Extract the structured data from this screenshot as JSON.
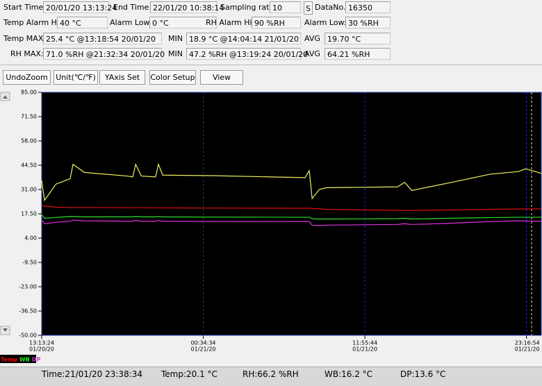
{
  "panel": {
    "start_time": {
      "label": "Start Time:",
      "value": "20/01/20 13:13:24"
    },
    "end_time": {
      "label": "End Time:",
      "value": "22/01/20 10:38:14"
    },
    "sampling_rate": {
      "label": "Sampling rate:",
      "value": "10",
      "button": "S"
    },
    "data_no": {
      "label": "DataNo.",
      "value": "16350"
    },
    "temp_alarm_hi": {
      "label": "Temp Alarm Hi:",
      "value": "40 °C"
    },
    "temp_alarm_low": {
      "label": "Alarm Low:",
      "value": "0 °C"
    },
    "rh_alarm_hi": {
      "label": "RH Alarm Hi:",
      "value": "90 %RH"
    },
    "rh_alarm_low": {
      "label": "Alarm Low:",
      "value": "30 %RH"
    },
    "temp_max": {
      "label": "Temp MAX:",
      "value": "25.4 °C @13:18:54 20/01/20"
    },
    "temp_min": {
      "label": "MIN",
      "value": "18.9 °C @14:04:14 21/01/20"
    },
    "temp_avg": {
      "label": "AVG",
      "value": "19.70 °C"
    },
    "rh_max": {
      "label": "RH MAX:",
      "value": "71.0 %RH @21:32:34 20/01/20"
    },
    "rh_min": {
      "label": "MIN",
      "value": "47.2 %RH @13:19:24 20/01/20"
    },
    "rh_avg": {
      "label": "AVG",
      "value": "64.21 %RH"
    }
  },
  "toolbar": [
    "UndoZoom",
    "Unit(℃/℉)",
    "YAxis Set",
    "Color Setup",
    "View"
  ],
  "chart_data": {
    "type": "line",
    "x": [
      0,
      0.2,
      1,
      2,
      2.2,
      3,
      6,
      6.4,
      6.6,
      7,
      8,
      8.2,
      8.5,
      12,
      18.5,
      18.8,
      19,
      19.5,
      20,
      25,
      25.5,
      26,
      28.5,
      31.5,
      33.5,
      34,
      35.1
    ],
    "series": [
      {
        "color": "#f0f060",
        "values": [
          36,
          25,
          34,
          37,
          45,
          40.5,
          38.5,
          38,
          45,
          38.5,
          38,
          45,
          39,
          38.7,
          37.6,
          41.5,
          26,
          31,
          32,
          32.5,
          35,
          30.5,
          34.5,
          39.5,
          41,
          42.5,
          40
        ]
      },
      {
        "name": "Temp",
        "color": "#e01010",
        "values": [
          22,
          21.8,
          21.2,
          21,
          21,
          21,
          20.9,
          20.9,
          20.9,
          20.9,
          20.8,
          20.8,
          20.8,
          20.7,
          20.6,
          20.6,
          20.5,
          20.3,
          20,
          19.4,
          19.4,
          19.4,
          19.6,
          20,
          20.2,
          20.2,
          20.2
        ]
      },
      {
        "name": "WB",
        "color": "#30e030",
        "values": [
          17,
          15,
          15.5,
          16,
          16,
          15.8,
          15.8,
          15.8,
          16,
          15.8,
          15.8,
          16,
          15.8,
          15.7,
          15.6,
          15.6,
          14.8,
          14.6,
          14.6,
          14.8,
          15,
          14.6,
          15,
          15.4,
          15.6,
          15.6,
          15.6
        ]
      },
      {
        "name": "DP",
        "color": "#e030e0",
        "values": [
          14,
          12,
          12.8,
          13.4,
          14,
          13.6,
          13.4,
          13.4,
          13.8,
          13.4,
          13.4,
          13.8,
          13.4,
          13.2,
          13.2,
          13.2,
          11.2,
          11,
          11.2,
          11.6,
          12,
          11.6,
          12.2,
          13.2,
          13.6,
          13.5,
          13.4
        ]
      }
    ],
    "xlim": [
      0,
      35.1
    ],
    "xticks": [
      {
        "value": 0,
        "label": "13:13:24"
      },
      {
        "value": 11.353,
        "label": "00:34:34"
      },
      {
        "value": 22.706,
        "label": "11:55:44"
      },
      {
        "value": 34.058,
        "label": "23:16:54"
      }
    ],
    "xtick_dates": [
      "01/20/20",
      "01/21/20",
      "01/21/20",
      "01/21/20"
    ],
    "ylim": [
      -50,
      85
    ],
    "yticks": [
      {
        "value": 85,
        "label": "85.00"
      },
      {
        "value": 71.5,
        "label": "71.50"
      },
      {
        "value": 58,
        "label": "58.00"
      },
      {
        "value": 44.5,
        "label": "44.50"
      },
      {
        "value": 31,
        "label": "31.00"
      },
      {
        "value": 17.5,
        "label": "17.50"
      },
      {
        "value": 4,
        "label": "4.00"
      },
      {
        "value": -9.5,
        "label": "-9.50"
      },
      {
        "value": -23,
        "label": "-23.00"
      },
      {
        "value": -36.5,
        "label": "-36.50"
      },
      {
        "value": -50,
        "label": "-50.00"
      }
    ],
    "grid": true
  },
  "status": {
    "time": "Time:21/01/20 23:38:34",
    "temp": "Temp:20.1 °C",
    "rh": "RH:66.2 %RH",
    "wb": "WB:16.2 °C",
    "dp": "DP:13.6 °C"
  }
}
